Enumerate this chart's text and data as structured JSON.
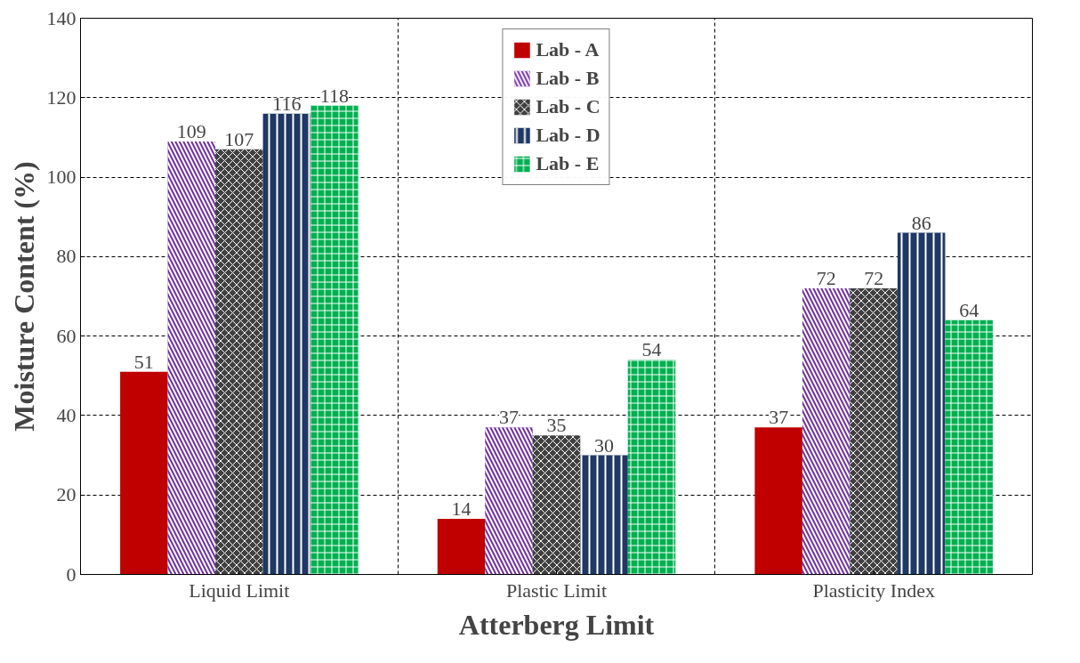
{
  "chart_data": {
    "type": "bar",
    "xlabel": "Atterberg Limit",
    "ylabel": "Moisture Content (%)",
    "categories": [
      "Liquid Limit",
      "Plastic Limit",
      "Plasticity Index"
    ],
    "series": [
      {
        "name": "Lab - A",
        "color": "#c00000",
        "values": [
          51,
          14,
          37
        ]
      },
      {
        "name": "Lab - B",
        "color": "#7030a0",
        "values": [
          109,
          37,
          72
        ]
      },
      {
        "name": "Lab - C",
        "color": "#404040",
        "values": [
          107,
          35,
          72
        ]
      },
      {
        "name": "Lab - D",
        "color": "#1f3864",
        "values": [
          116,
          30,
          86
        ]
      },
      {
        "name": "Lab - E",
        "color": "#00b050",
        "values": [
          118,
          54,
          64
        ]
      }
    ],
    "ylim": [
      0,
      140
    ],
    "yticks": [
      0,
      20,
      40,
      60,
      80,
      100,
      120,
      140
    ],
    "grid": true,
    "legend": "top",
    "data_labels": true
  }
}
